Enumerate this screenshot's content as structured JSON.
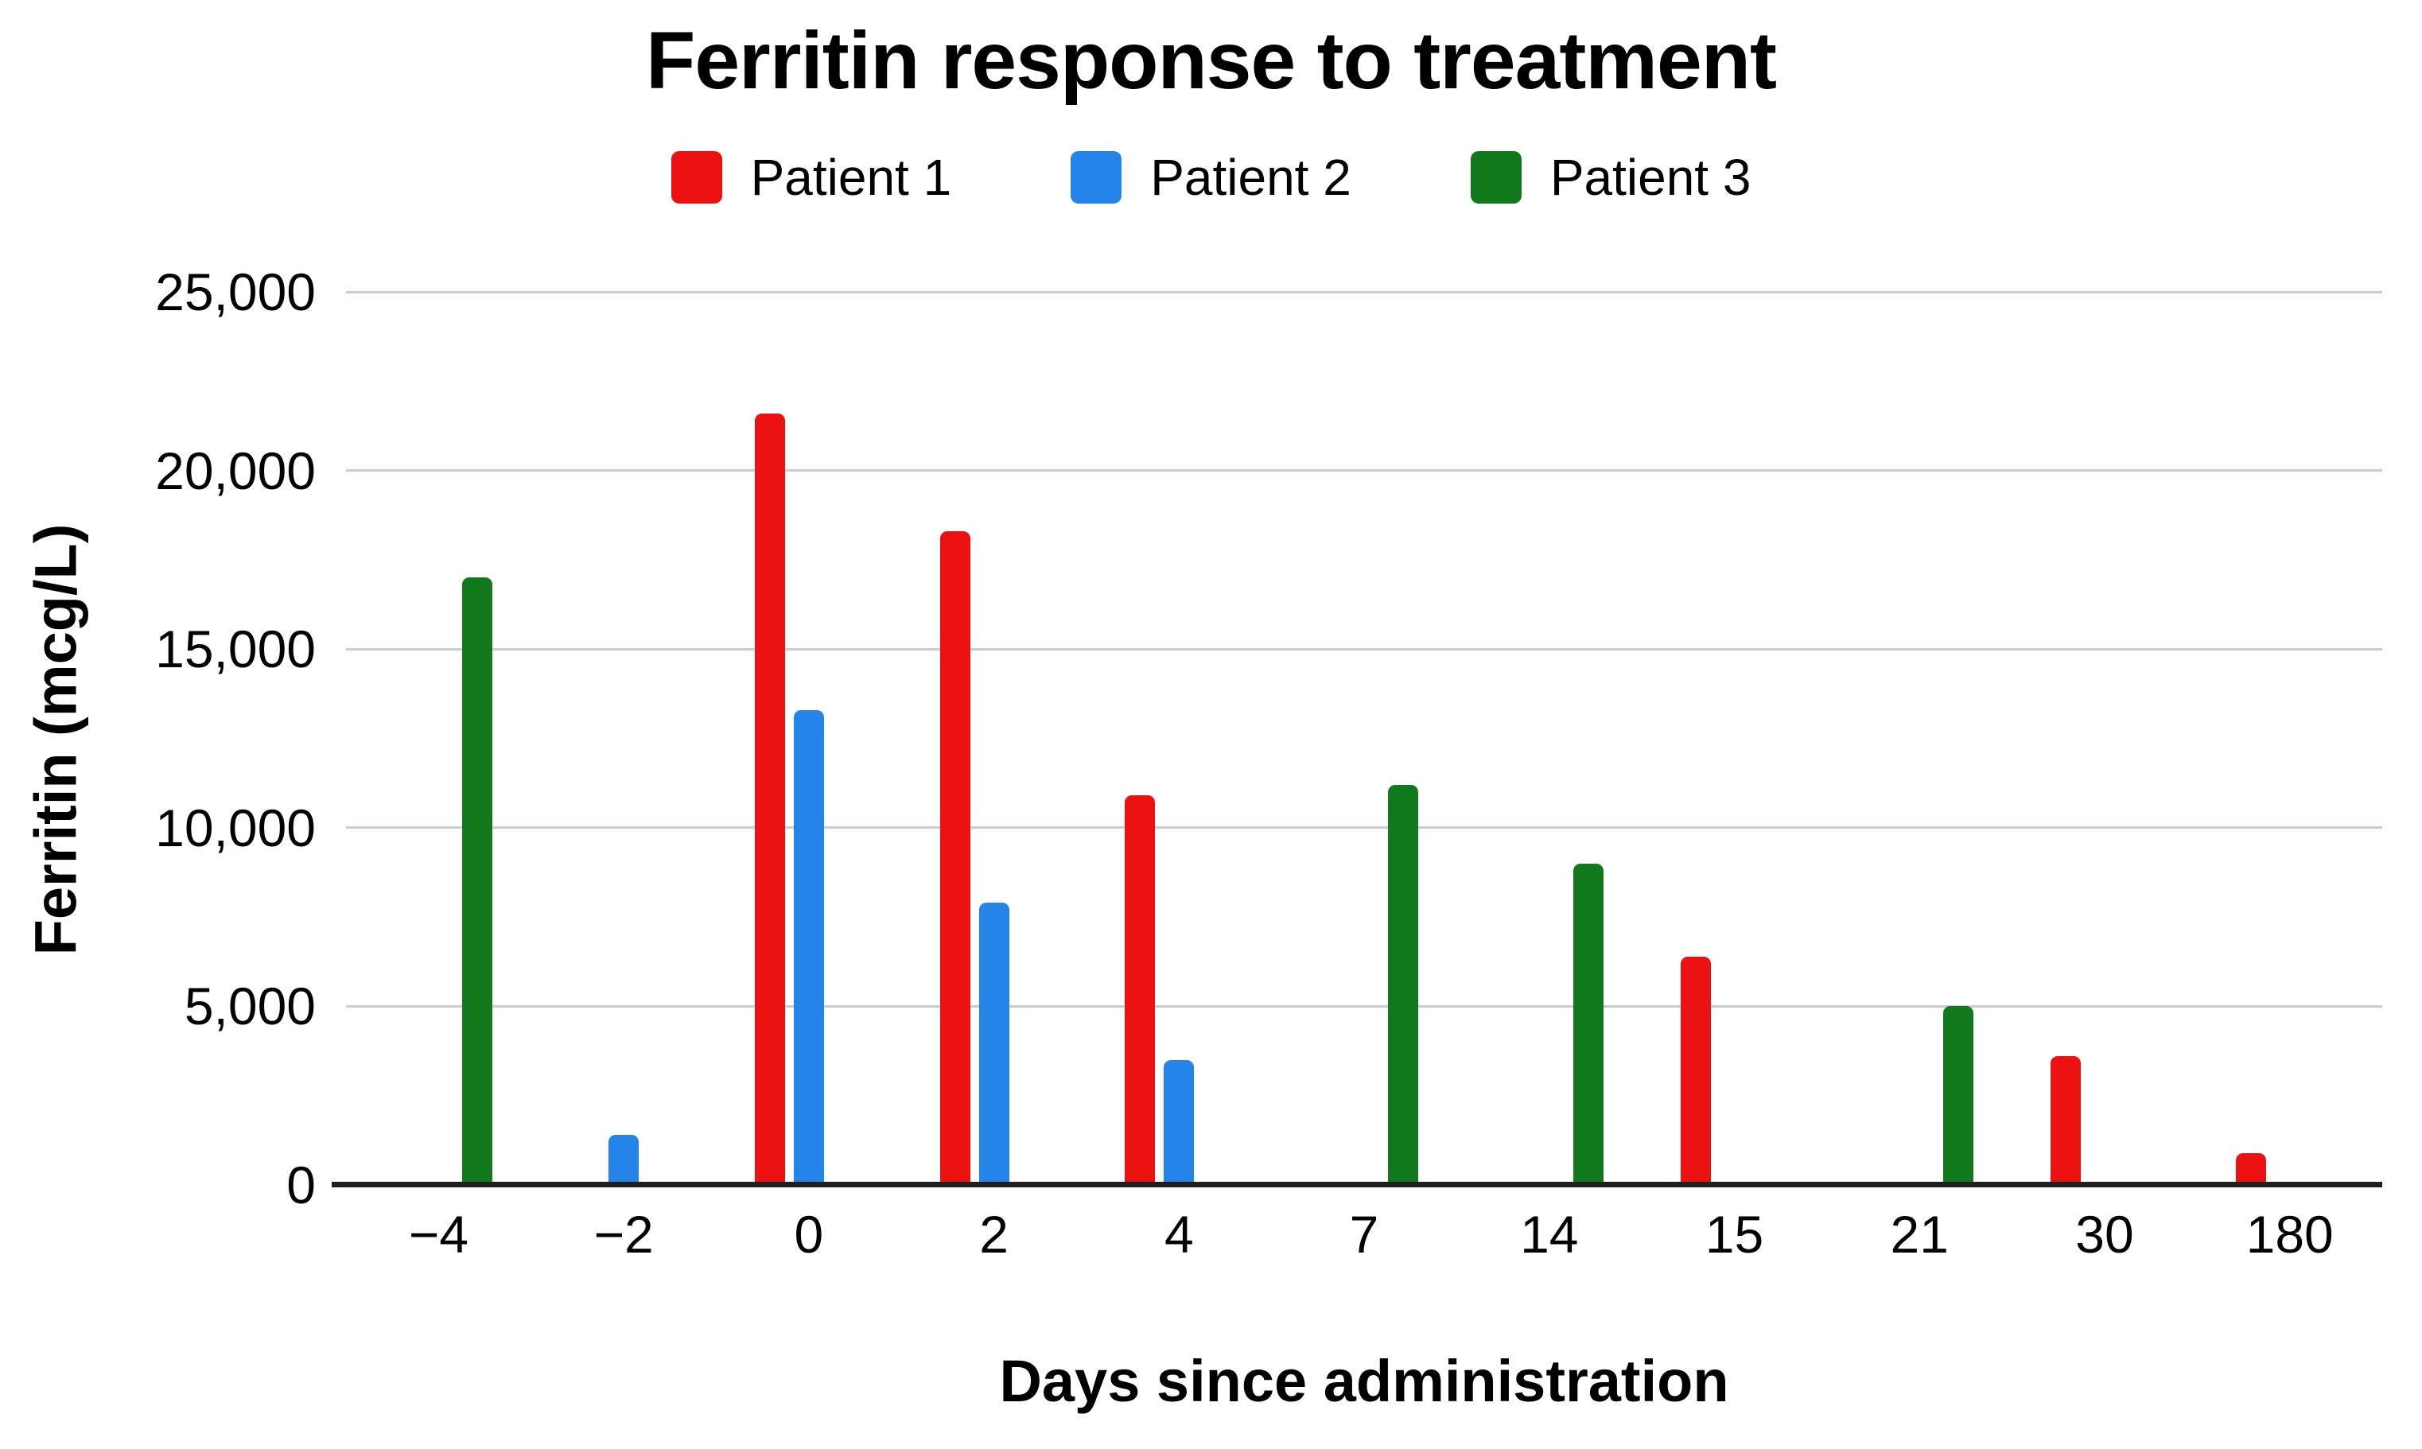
{
  "title": "Ferritin response to treatment",
  "y_axis": {
    "title": "Ferritin (mcg/L)",
    "tick_labels": [
      "0",
      "5,000",
      "10,000",
      "15,000",
      "20,000",
      "25,000"
    ],
    "tick_values": [
      0,
      5000,
      10000,
      15000,
      20000,
      25000
    ]
  },
  "x_axis": {
    "title": "Days since administration"
  },
  "colors": {
    "patient1": "#ec1212",
    "patient2": "#2484e8",
    "patient3": "#13791d",
    "gridline": "#cccccc",
    "axis_line": "#1f1f1f",
    "text": "#000000"
  },
  "chart_data": {
    "type": "bar",
    "title": "Ferritin response to treatment",
    "xlabel": "Days since administration",
    "ylabel": "Ferritin (mcg/L)",
    "ylim": [
      0,
      25000
    ],
    "grid": true,
    "legend_position": "top",
    "categories": [
      "−4",
      "−2",
      "0",
      "2",
      "4",
      "7",
      "14",
      "15",
      "21",
      "30",
      "180"
    ],
    "series": [
      {
        "name": "Patient 1",
        "color": "#ec1212",
        "values": [
          null,
          null,
          21600,
          18300,
          10900,
          null,
          null,
          6400,
          null,
          3600,
          900
        ]
      },
      {
        "name": "Patient 2",
        "color": "#2484e8",
        "values": [
          null,
          1400,
          13300,
          7900,
          3500,
          null,
          null,
          null,
          null,
          null,
          null
        ]
      },
      {
        "name": "Patient 3",
        "color": "#13791d",
        "values": [
          17000,
          null,
          null,
          null,
          null,
          11200,
          9000,
          null,
          5000,
          null,
          null
        ]
      }
    ]
  }
}
